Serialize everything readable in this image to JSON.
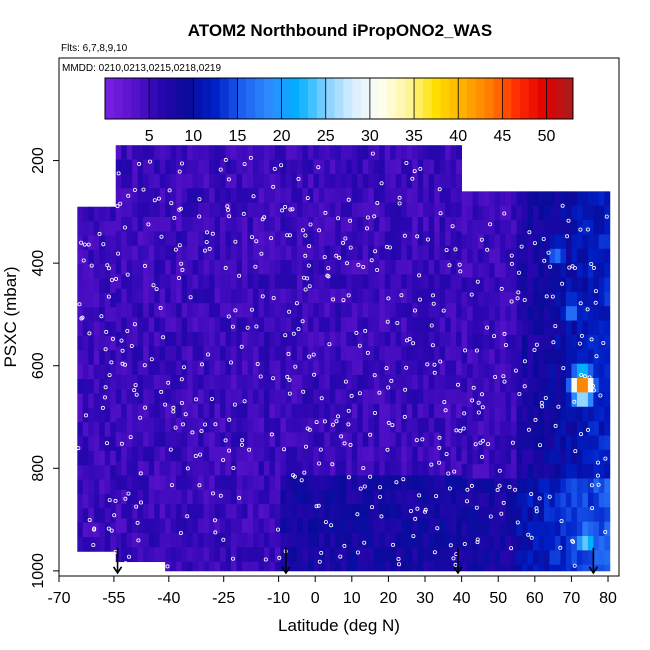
{
  "chart_data": {
    "type": "heatmap",
    "title": "ATOM2 Northbound iPropONO2_WAS",
    "flights_label": "Flts: 6,7,8,9,10",
    "dates_label": "MMDD: 0210,0213,0215,0218,0219",
    "xlabel": "Latitude (deg N)",
    "ylabel": "PSXC (mbar)",
    "xlim": [
      -70,
      83
    ],
    "ylim": [
      1010,
      0
    ],
    "x_ticks": [
      -70,
      -55,
      -40,
      -25,
      -10,
      0,
      10,
      20,
      30,
      40,
      50,
      60,
      70,
      80
    ],
    "y_ticks": [
      200,
      400,
      600,
      800,
      1000
    ],
    "colorbar": {
      "range": [
        0,
        53
      ],
      "ticks": [
        5,
        10,
        15,
        20,
        25,
        30,
        35,
        40,
        45,
        50
      ],
      "colors": [
        "#7a22e6",
        "#5a12cc",
        "#2a06b0",
        "#0a0a9a",
        "#0020c8",
        "#1e5ff0",
        "#2f8cff",
        "#00b0ff",
        "#7fd0ff",
        "#d8eeff",
        "#fffff0",
        "#fff5a0",
        "#ffe000",
        "#ffb000",
        "#ff7a00",
        "#ff2a00",
        "#e00000",
        "#a81e1e"
      ]
    },
    "profile_arrows_latitude": [
      -54,
      -8,
      39,
      76
    ],
    "coverage": {
      "lat_min": -65,
      "lat_max": 80,
      "p_min": 170,
      "p_max": 1000
    },
    "typical_value_range": [
      2,
      12
    ],
    "hotspots": [
      {
        "lat": 73,
        "p": 640,
        "value": 45
      },
      {
        "lat": 74,
        "p": 940,
        "value": 25
      },
      {
        "lat": 70,
        "p": 490,
        "value": 18
      },
      {
        "lat": 66,
        "p": 380,
        "value": 17
      }
    ]
  }
}
